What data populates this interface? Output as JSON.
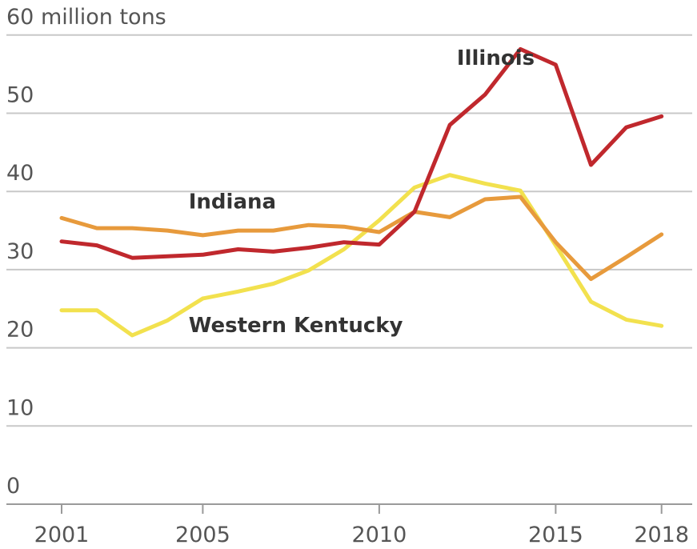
{
  "chart_data": {
    "type": "line",
    "title": "",
    "ylabel": "60 million tons",
    "xlabel": "",
    "ylim": [
      0,
      60
    ],
    "yticks": [
      0,
      10,
      20,
      30,
      40,
      50
    ],
    "xticks": [
      2001,
      2005,
      2010,
      2015,
      2018
    ],
    "grid": true,
    "x": [
      2001,
      2002,
      2003,
      2004,
      2005,
      2006,
      2007,
      2008,
      2009,
      2010,
      2011,
      2012,
      2013,
      2014,
      2015,
      2016,
      2017,
      2018
    ],
    "series": [
      {
        "name": "Illinois",
        "color": "#c0282d",
        "values": [
          33.6,
          33.1,
          31.5,
          31.7,
          31.9,
          32.6,
          32.3,
          32.8,
          33.5,
          33.2,
          37.4,
          48.5,
          52.4,
          58.2,
          56.2,
          43.4,
          48.2,
          49.6
        ]
      },
      {
        "name": "Indiana",
        "color": "#e79a3c",
        "values": [
          36.6,
          35.3,
          35.3,
          35.0,
          34.4,
          35.0,
          35.0,
          35.7,
          35.5,
          34.8,
          37.4,
          36.7,
          39.0,
          39.3,
          33.5,
          28.8,
          31.6,
          34.5
        ]
      },
      {
        "name": "Western Kentucky",
        "color": "#f2e14e",
        "values": [
          24.8,
          24.8,
          21.6,
          23.5,
          26.3,
          27.2,
          28.2,
          29.9,
          32.6,
          36.3,
          40.5,
          42.1,
          41.0,
          40.1,
          33.1,
          25.9,
          23.6,
          22.8
        ]
      }
    ]
  }
}
